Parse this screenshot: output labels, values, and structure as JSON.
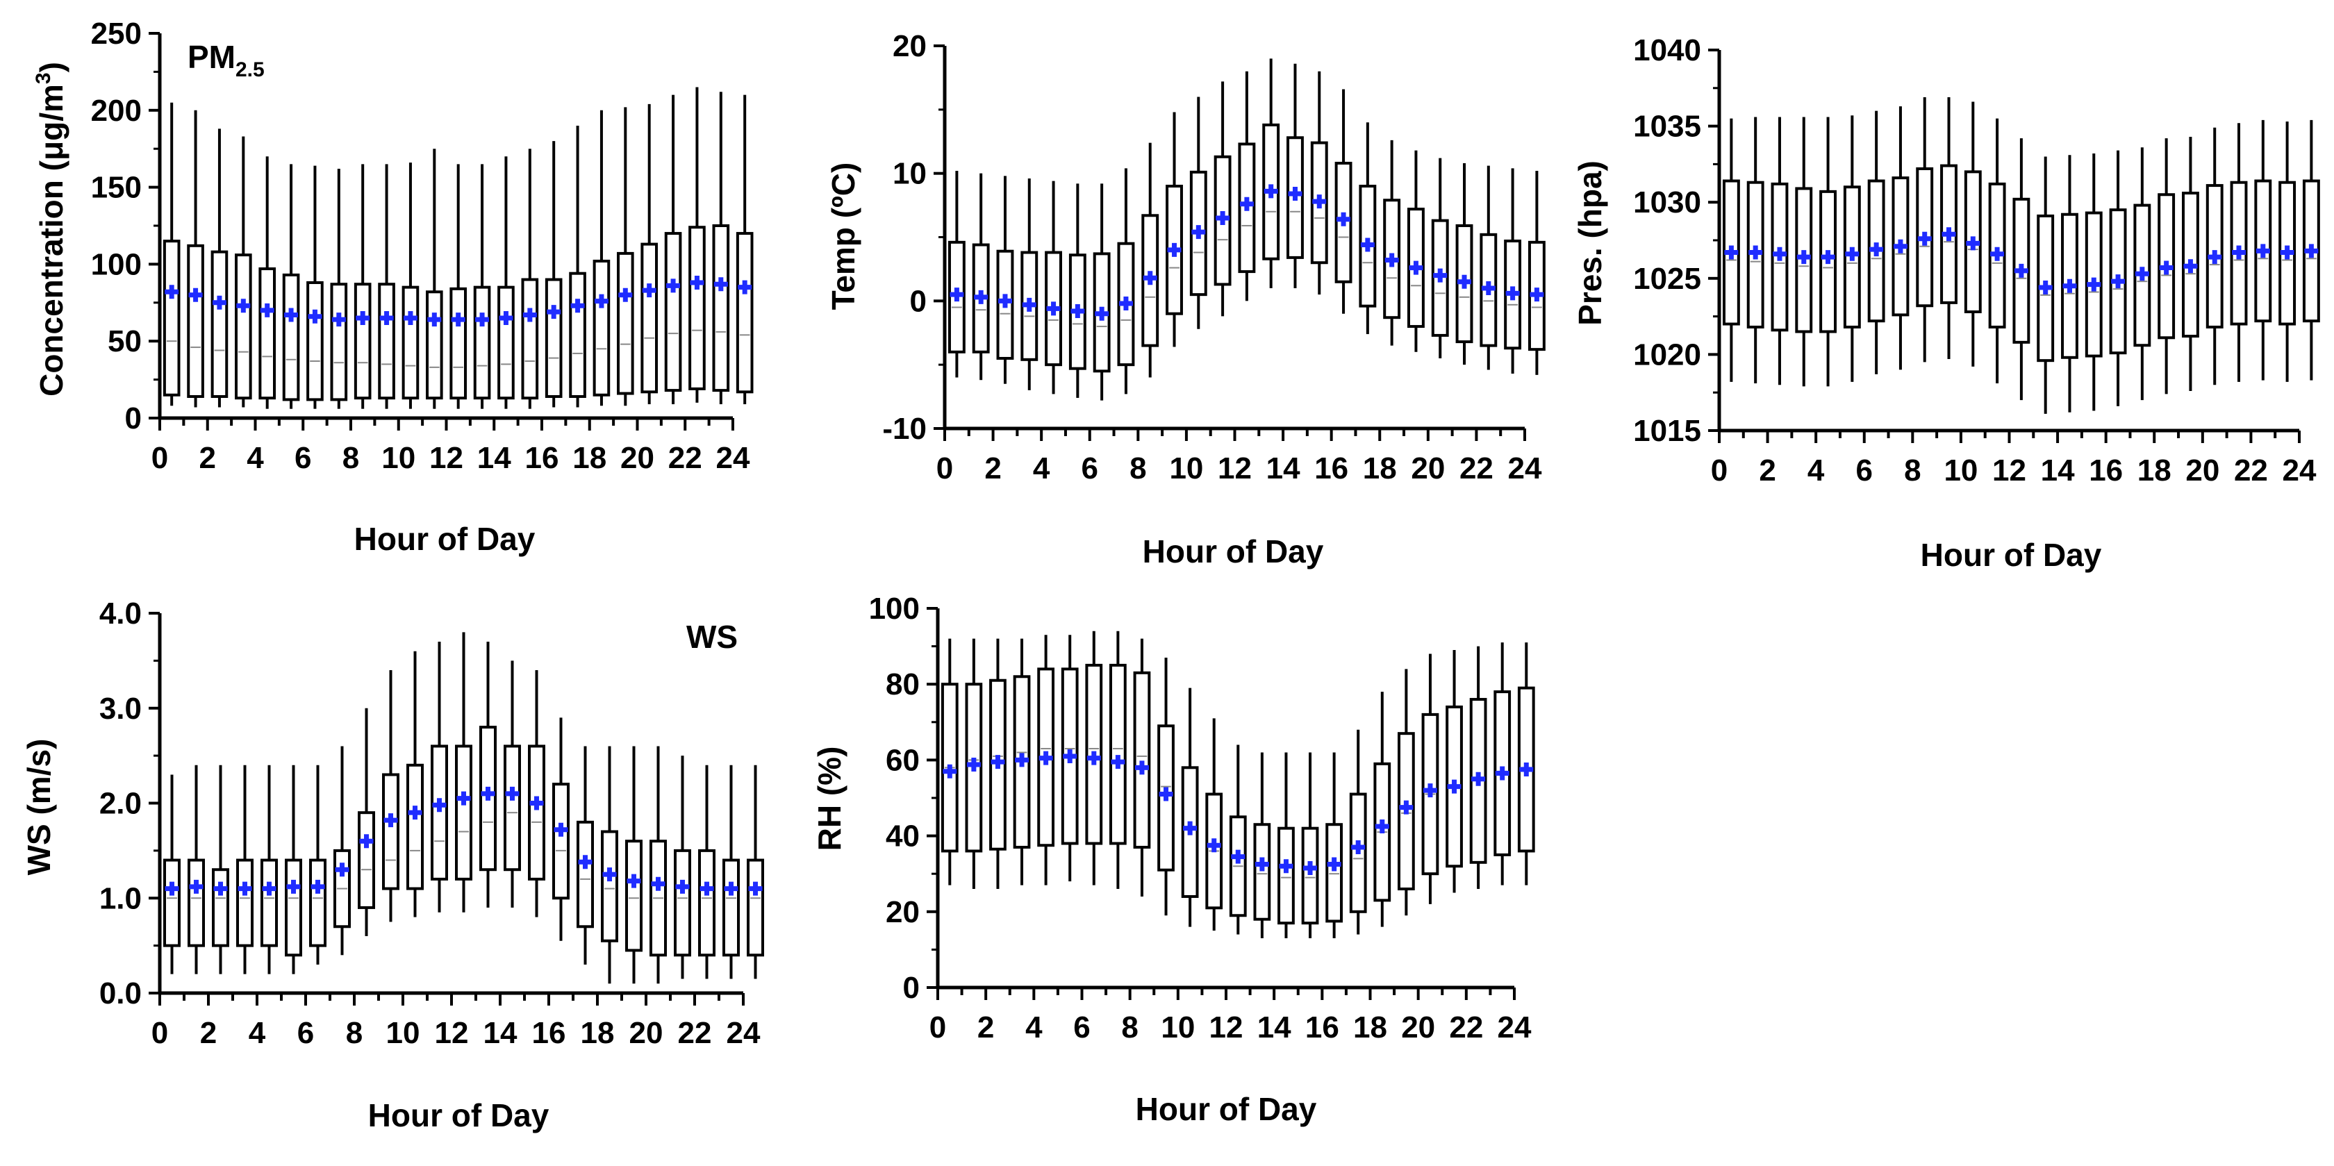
{
  "chart_data": [
    {
      "type": "box",
      "id": "pm25",
      "label_main": "PM",
      "label_sub": "2.5",
      "xlabel": "Hour of Day",
      "ylabel_main": "Concentration (μg/m",
      "ylabel_sup": "3",
      "ylabel_end": ")",
      "xlim": [
        0,
        24
      ],
      "ylim": [
        0,
        250
      ],
      "xticks": [
        "0",
        "2",
        "4",
        "6",
        "8",
        "10",
        "12",
        "14",
        "16",
        "18",
        "20",
        "22",
        "24"
      ],
      "yticks": [
        "0",
        "50",
        "100",
        "150",
        "200",
        "250"
      ],
      "ytick_values": [
        0,
        50,
        100,
        150,
        200,
        250
      ],
      "means": [
        82,
        80,
        75,
        73,
        70,
        67,
        66,
        64,
        65,
        65,
        65,
        64,
        64,
        64,
        65,
        67,
        69,
        73,
        76,
        80,
        83,
        86,
        88,
        87,
        85
      ],
      "q1": [
        15,
        14,
        14,
        13,
        13,
        12,
        12,
        12,
        13,
        13,
        13,
        13,
        13,
        13,
        13,
        13,
        14,
        14,
        15,
        16,
        17,
        18,
        19,
        18,
        17
      ],
      "q3": [
        115,
        112,
        108,
        106,
        97,
        93,
        88,
        87,
        87,
        87,
        85,
        82,
        84,
        85,
        85,
        90,
        90,
        94,
        102,
        107,
        113,
        120,
        124,
        125,
        120
      ],
      "median": [
        50,
        46,
        44,
        43,
        40,
        38,
        37,
        36,
        36,
        35,
        34,
        33,
        33,
        34,
        35,
        37,
        39,
        42,
        45,
        48,
        52,
        55,
        57,
        56,
        54
      ],
      "whisk_low": [
        8,
        7,
        7,
        7,
        6,
        6,
        6,
        6,
        6,
        6,
        6,
        6,
        6,
        6,
        6,
        6,
        7,
        7,
        8,
        8,
        9,
        9,
        10,
        9,
        9
      ],
      "whisk_high": [
        205,
        200,
        188,
        183,
        170,
        165,
        164,
        162,
        165,
        165,
        166,
        175,
        165,
        165,
        170,
        175,
        180,
        190,
        200,
        202,
        204,
        210,
        215,
        212,
        210
      ]
    },
    {
      "type": "box",
      "id": "temp",
      "xlabel": "Hour of Day",
      "ylabel_main": "Temp (ºC)",
      "xlim": [
        0,
        24
      ],
      "ylim": [
        -10,
        20
      ],
      "xticks": [
        "0",
        "2",
        "4",
        "6",
        "8",
        "10",
        "12",
        "14",
        "16",
        "18",
        "20",
        "22",
        "24"
      ],
      "yticks": [
        "-10",
        "0",
        "10",
        "20"
      ],
      "ytick_values": [
        -10,
        0,
        10,
        20
      ],
      "means": [
        0.5,
        0.3,
        0,
        -0.3,
        -0.6,
        -0.8,
        -1.0,
        -0.2,
        1.8,
        4.0,
        5.4,
        6.5,
        7.6,
        8.6,
        8.4,
        7.8,
        6.4,
        4.4,
        3.2,
        2.6,
        2.0,
        1.5,
        1.0,
        0.6,
        0.5
      ],
      "q1": [
        -4,
        -4,
        -4.5,
        -4.6,
        -5,
        -5.3,
        -5.5,
        -5,
        -3.5,
        -1,
        0.5,
        1.3,
        2.3,
        3.3,
        3.4,
        3,
        1.5,
        -0.4,
        -1.3,
        -2,
        -2.7,
        -3.2,
        -3.5,
        -3.7,
        -3.8
      ],
      "q3": [
        4.6,
        4.4,
        3.9,
        3.8,
        3.8,
        3.6,
        3.7,
        4.5,
        6.7,
        9,
        10.1,
        11.3,
        12.3,
        13.8,
        12.8,
        12.4,
        10.8,
        9,
        7.9,
        7.2,
        6.3,
        5.9,
        5.2,
        4.7,
        4.6
      ],
      "median": [
        -0.5,
        -0.7,
        -1,
        -1.2,
        -1.5,
        -1.8,
        -2,
        -1.5,
        0.3,
        2.6,
        3.8,
        4.8,
        5.9,
        7,
        7,
        6.5,
        5,
        3,
        1.8,
        1.2,
        0.6,
        0.3,
        0,
        -0.3,
        -0.5
      ],
      "whisk_low": [
        -6,
        -6.2,
        -6.5,
        -7,
        -7.3,
        -7.6,
        -7.8,
        -7.3,
        -6,
        -3.6,
        -2.2,
        -1.2,
        0,
        1,
        1,
        0.5,
        -1,
        -2.6,
        -3.5,
        -4,
        -4.5,
        -5,
        -5.4,
        -5.7,
        -5.8
      ],
      "whisk_high": [
        10.2,
        10,
        9.8,
        9.6,
        9.4,
        9.2,
        9.2,
        10.4,
        12.4,
        14.8,
        16,
        17.2,
        18,
        19,
        18.6,
        18,
        16.6,
        14,
        12.6,
        11.8,
        11.2,
        10.8,
        10.6,
        10.4,
        10.2
      ]
    },
    {
      "type": "box",
      "id": "pres",
      "xlabel": "Hour of Day",
      "ylabel_main": "Pres. (hpa)",
      "xlim": [
        0,
        24
      ],
      "ylim": [
        1015,
        1040
      ],
      "xticks": [
        "0",
        "2",
        "4",
        "6",
        "8",
        "10",
        "12",
        "14",
        "16",
        "18",
        "20",
        "22",
        "24"
      ],
      "yticks": [
        "1015",
        "1020",
        "1025",
        "1030",
        "1035",
        "1040"
      ],
      "ytick_values": [
        1015,
        1020,
        1025,
        1030,
        1035,
        1040
      ],
      "means": [
        1026.7,
        1026.7,
        1026.6,
        1026.4,
        1026.4,
        1026.6,
        1026.9,
        1027.1,
        1027.6,
        1027.9,
        1027.3,
        1026.6,
        1025.5,
        1024.4,
        1024.5,
        1024.6,
        1024.8,
        1025.3,
        1025.7,
        1025.8,
        1026.4,
        1026.7,
        1026.8,
        1026.7,
        1026.8
      ],
      "q1": [
        1022,
        1021.8,
        1021.6,
        1021.5,
        1021.5,
        1021.8,
        1022.2,
        1022.6,
        1023.2,
        1023.4,
        1022.8,
        1021.8,
        1020.8,
        1019.6,
        1019.8,
        1019.9,
        1020.1,
        1020.6,
        1021.1,
        1021.2,
        1021.8,
        1022,
        1022.2,
        1022,
        1022.2
      ],
      "q3": [
        1031.4,
        1031.3,
        1031.2,
        1030.9,
        1030.7,
        1031,
        1031.4,
        1031.6,
        1032.2,
        1032.4,
        1032,
        1031.2,
        1030.2,
        1029.1,
        1029.2,
        1029.3,
        1029.5,
        1029.8,
        1030.5,
        1030.6,
        1031.1,
        1031.3,
        1031.4,
        1031.3,
        1031.4
      ],
      "median": [
        1026.2,
        1026.1,
        1026,
        1025.8,
        1025.7,
        1026,
        1026.3,
        1026.6,
        1027.1,
        1027.4,
        1026.9,
        1026,
        1025,
        1023.9,
        1024,
        1024.1,
        1024.3,
        1024.8,
        1025.2,
        1025.3,
        1025.9,
        1026.2,
        1026.3,
        1026.2,
        1026.3
      ],
      "whisk_low": [
        1018.2,
        1018.1,
        1018,
        1017.9,
        1017.9,
        1018.2,
        1018.7,
        1019,
        1019.5,
        1019.7,
        1019.2,
        1018.1,
        1017,
        1016.1,
        1016.2,
        1016.3,
        1016.6,
        1017,
        1017.4,
        1017.6,
        1018,
        1018.2,
        1018.3,
        1018.2,
        1018.3
      ],
      "whisk_high": [
        1035.5,
        1035.6,
        1035.6,
        1035.6,
        1035.6,
        1035.7,
        1036,
        1036.3,
        1036.9,
        1036.9,
        1036.6,
        1035.5,
        1034.2,
        1033,
        1033.1,
        1033.2,
        1033.4,
        1033.6,
        1034.2,
        1034.3,
        1034.9,
        1035.2,
        1035.4,
        1035.3,
        1035.4
      ]
    },
    {
      "type": "box",
      "id": "ws",
      "label_main": "WS",
      "xlabel": "Hour of Day",
      "ylabel_main": "WS (m/s)",
      "xlim": [
        0,
        24
      ],
      "ylim": [
        0,
        4
      ],
      "xticks": [
        "0",
        "2",
        "4",
        "6",
        "8",
        "10",
        "12",
        "14",
        "16",
        "18",
        "20",
        "22",
        "24"
      ],
      "yticks": [
        "0.0",
        "1.0",
        "2.0",
        "3.0",
        "4.0"
      ],
      "ytick_values": [
        0,
        1,
        2,
        3,
        4
      ],
      "means": [
        1.1,
        1.12,
        1.1,
        1.1,
        1.1,
        1.12,
        1.12,
        1.3,
        1.6,
        1.82,
        1.9,
        1.98,
        2.05,
        2.1,
        2.1,
        2.0,
        1.72,
        1.38,
        1.25,
        1.18,
        1.15,
        1.12,
        1.1,
        1.1,
        1.1
      ],
      "q1": [
        0.5,
        0.5,
        0.5,
        0.5,
        0.5,
        0.4,
        0.5,
        0.7,
        0.9,
        1.1,
        1.1,
        1.2,
        1.2,
        1.3,
        1.3,
        1.2,
        1.0,
        0.7,
        0.55,
        0.45,
        0.4,
        0.4,
        0.4,
        0.4,
        0.4
      ],
      "q3": [
        1.4,
        1.4,
        1.3,
        1.4,
        1.4,
        1.4,
        1.4,
        1.5,
        1.9,
        2.3,
        2.4,
        2.6,
        2.6,
        2.8,
        2.6,
        2.6,
        2.2,
        1.8,
        1.7,
        1.6,
        1.6,
        1.5,
        1.5,
        1.4,
        1.4
      ],
      "median": [
        1.0,
        1.0,
        1.0,
        1.0,
        1.0,
        1.0,
        1.0,
        1.1,
        1.3,
        1.4,
        1.5,
        1.6,
        1.7,
        1.8,
        1.9,
        1.8,
        1.5,
        1.2,
        1.1,
        1.0,
        1.0,
        1.0,
        1.0,
        1.0,
        1.0
      ],
      "whisk_low": [
        0.2,
        0.2,
        0.2,
        0.2,
        0.2,
        0.2,
        0.3,
        0.4,
        0.6,
        0.75,
        0.8,
        0.85,
        0.85,
        0.9,
        0.9,
        0.8,
        0.55,
        0.3,
        0.1,
        0.1,
        0.1,
        0.15,
        0.15,
        0.15,
        0.15
      ],
      "whisk_high": [
        2.3,
        2.4,
        2.4,
        2.4,
        2.4,
        2.4,
        2.4,
        2.6,
        3.0,
        3.4,
        3.6,
        3.7,
        3.8,
        3.7,
        3.5,
        3.4,
        2.9,
        2.6,
        2.6,
        2.6,
        2.6,
        2.5,
        2.4,
        2.4,
        2.4
      ]
    },
    {
      "type": "box",
      "id": "rh",
      "xlabel": "Hour of Day",
      "ylabel_main": "RH (%)",
      "xlim": [
        0,
        24
      ],
      "ylim": [
        0,
        100
      ],
      "xticks": [
        "0",
        "2",
        "4",
        "6",
        "8",
        "10",
        "12",
        "14",
        "16",
        "18",
        "20",
        "22",
        "24"
      ],
      "yticks": [
        "0",
        "20",
        "40",
        "60",
        "80",
        "100"
      ],
      "ytick_values": [
        0,
        20,
        40,
        60,
        80,
        100
      ],
      "means": [
        57,
        58.8,
        59.5,
        60,
        60.5,
        61,
        60.5,
        59.5,
        58,
        51,
        42,
        37.5,
        34.5,
        32.5,
        32,
        31.5,
        32.5,
        37,
        42.5,
        47.5,
        52,
        53,
        55,
        56.5,
        57.5
      ],
      "q1": [
        36,
        36,
        36.5,
        37,
        37.5,
        38,
        38,
        38,
        37,
        31,
        24,
        21,
        19,
        18,
        17,
        17,
        17.5,
        20,
        23,
        26,
        30,
        32,
        33,
        35,
        36
      ],
      "q3": [
        80,
        80,
        81,
        82,
        84,
        84,
        85,
        85,
        83,
        69,
        58,
        51,
        45,
        43,
        42,
        42,
        43,
        51,
        59,
        67,
        72,
        74,
        76,
        78,
        79
      ],
      "median": [
        58,
        60,
        61,
        62,
        63,
        63,
        63,
        63,
        61,
        53,
        42,
        36,
        32,
        30,
        29,
        29,
        30,
        34,
        41,
        46,
        51,
        53,
        55,
        57,
        58
      ],
      "whisk_low": [
        27,
        26,
        26,
        27,
        27,
        28,
        27,
        26,
        24,
        19,
        16,
        15,
        14,
        13,
        13,
        13,
        13,
        14,
        16,
        19,
        22,
        25,
        26,
        27,
        27
      ],
      "whisk_high": [
        92,
        92,
        92,
        92,
        93,
        93,
        94,
        94,
        92,
        87,
        79,
        71,
        64,
        62,
        62,
        62,
        62,
        68,
        78,
        84,
        88,
        89,
        90,
        91,
        91
      ]
    }
  ]
}
